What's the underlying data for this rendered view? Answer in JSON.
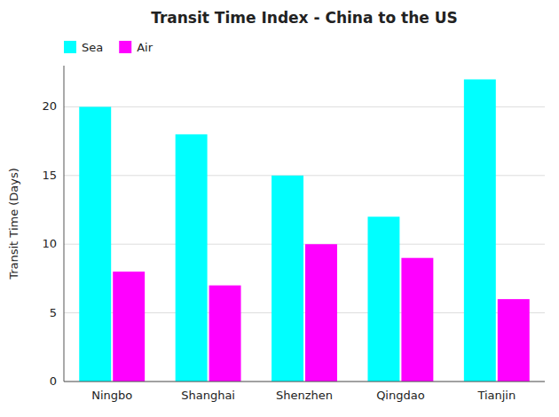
{
  "chart_data": {
    "type": "bar",
    "title": "Transit Time Index - China to the US",
    "ylabel": "Transit Time (Days)",
    "categories": [
      "Ningbo",
      "Shanghai",
      "Shenzhen",
      "Qingdao",
      "Tianjin"
    ],
    "series": [
      {
        "name": "Sea",
        "color": "#00FFFF",
        "values": [
          20,
          18,
          15,
          12,
          22
        ]
      },
      {
        "name": "Air",
        "color": "#FF00FF",
        "values": [
          8,
          7,
          10,
          9,
          6
        ]
      }
    ],
    "ylim": [
      0,
      23
    ],
    "yticks": [
      0,
      5,
      10,
      15,
      20
    ],
    "grid": true,
    "legend": "upper left"
  }
}
